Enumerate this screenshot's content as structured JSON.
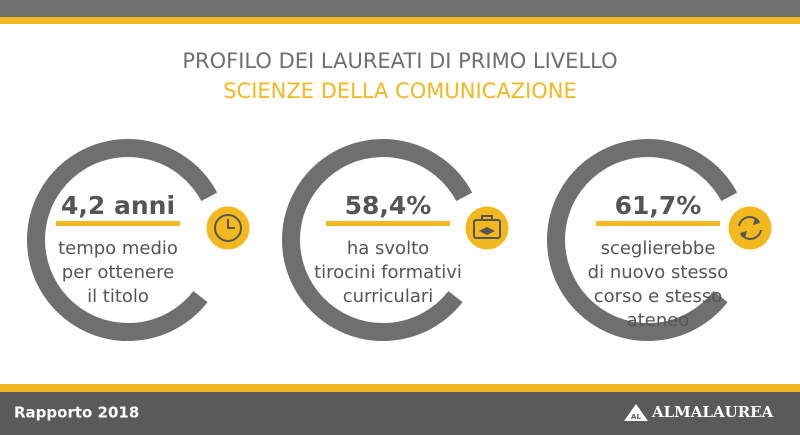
{
  "header": {
    "title": "PROFILO DEI LAUREATI DI PRIMO LIVELLO",
    "subtitle": "SCIENZE DELLA COMUNICAZIONE"
  },
  "cards": [
    {
      "value": "4,2 anni",
      "lines": [
        "tempo medio",
        "per ottenere",
        "il titolo"
      ]
    },
    {
      "value": "58,4%",
      "lines": [
        "ha svolto",
        "tirocini formativi",
        "curriculari"
      ]
    },
    {
      "value": "61,7%",
      "lines": [
        "sceglierebbe",
        "di nuovo stesso",
        "corso e stesso",
        "ateneo"
      ]
    }
  ],
  "footer": {
    "report": "Rapporto 2018",
    "logo_mark": "AL",
    "logo": "ALMALAUREA"
  }
}
